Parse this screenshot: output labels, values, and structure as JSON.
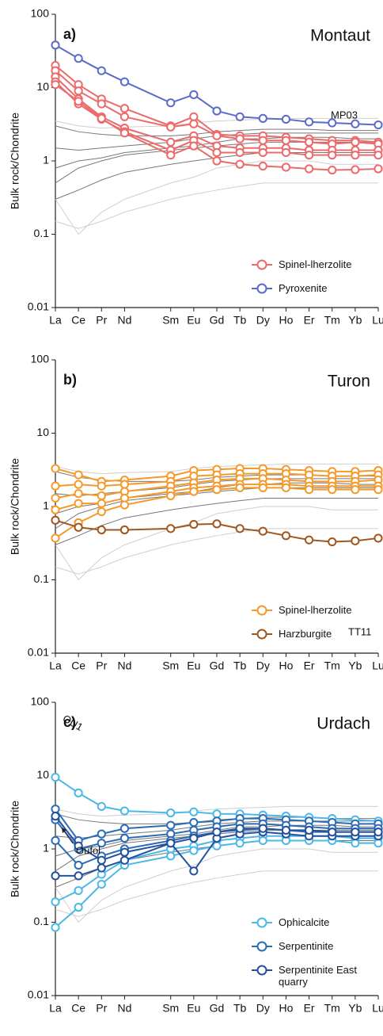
{
  "chart_data": [
    {
      "type": "line",
      "panel": "a)",
      "title": "Montaut",
      "ylabel": "Bulk rock/Chondrite",
      "yscale": "log",
      "x": [
        57,
        58,
        59,
        60,
        62,
        63,
        64,
        65,
        66,
        67,
        68,
        69,
        70,
        71
      ],
      "xlim": [
        57,
        71
      ],
      "xticks": [
        {
          "value": 57,
          "label": "La"
        },
        {
          "value": 58,
          "label": "Ce"
        },
        {
          "value": 59,
          "label": "Pr"
        },
        {
          "value": 60,
          "label": "Nd"
        },
        {
          "value": 62,
          "label": "Sm"
        },
        {
          "value": 63,
          "label": "Eu"
        },
        {
          "value": 64,
          "label": "Gd"
        },
        {
          "value": 65,
          "label": "Tb"
        },
        {
          "value": 66,
          "label": "Dy"
        },
        {
          "value": 67,
          "label": "Ho"
        },
        {
          "value": 68,
          "label": "Er"
        },
        {
          "value": 69,
          "label": "Tm"
        },
        {
          "value": 70,
          "label": "Yb"
        },
        {
          "value": 71,
          "label": "Lu"
        }
      ],
      "ylim": [
        0.01,
        100
      ],
      "yticks": [
        0.01,
        0.1,
        1,
        10,
        100
      ],
      "legend": "lower right",
      "series": [
        {
          "color": "#cfcfcf",
          "samples": [
            [
              0.15,
              0.12,
              0.15,
              0.2,
              0.3,
              0.35,
              0.4,
              0.45,
              0.5,
              0.5,
              0.5,
              0.5,
              0.5,
              0.5
            ],
            [
              0.3,
              0.1,
              0.2,
              0.3,
              0.5,
              0.6,
              0.8,
              0.9,
              1.0,
              1.0,
              1.0,
              0.9,
              0.9,
              0.9
            ],
            [
              3.5,
              3.0,
              2.8,
              2.9,
              3.0,
              3.3,
              3.5,
              3.6,
              3.7,
              3.8,
              3.8,
              3.8,
              3.8,
              3.8
            ]
          ]
        },
        {
          "color": "#777777",
          "samples": [
            [
              3,
              2.5,
              2.3,
              2.2,
              2.2,
              2.3,
              2.5,
              2.6,
              2.7,
              2.7,
              2.7,
              2.6,
              2.6,
              2.6
            ],
            [
              0.5,
              0.8,
              1.0,
              1.2,
              1.4,
              1.5,
              1.6,
              1.7,
              1.8,
              1.8,
              1.8,
              1.8,
              1.8,
              1.8
            ],
            [
              0.3,
              0.4,
              0.55,
              0.7,
              0.9,
              1.0,
              1.1,
              1.2,
              1.3,
              1.3,
              1.3,
              1.3,
              1.3,
              1.3
            ],
            [
              1.5,
              1.4,
              1.5,
              1.6,
              1.8,
              2.0,
              2.2,
              2.3,
              2.4,
              2.4,
              2.4,
              2.4,
              2.4,
              2.4
            ],
            [
              0.8,
              1.0,
              1.1,
              1.3,
              1.5,
              1.6,
              1.8,
              2.0,
              2.0,
              2.1,
              2.1,
              2.1,
              2.0,
              2.0
            ]
          ]
        },
        {
          "name": "Spinel-lherzolite",
          "color": "#ec6a6a",
          "marker": true,
          "samples": [
            [
              20,
              11,
              7,
              5.2,
              3,
              4,
              2.3,
              2.2,
              2.2,
              2.1,
              2.0,
              1.9,
              1.9,
              1.8
            ],
            [
              17,
              9,
              6,
              4,
              2.9,
              3.2,
              2.2,
              2.0,
              1.9,
              1.9,
              1.8,
              1.7,
              1.8,
              1.7
            ],
            [
              14,
              7,
              4,
              2.8,
              1.8,
              2.2,
              1.6,
              1.5,
              1.5,
              1.5,
              1.4,
              1.4,
              1.4,
              1.4
            ],
            [
              12,
              6,
              3.7,
              2.5,
              1.4,
              1.9,
              1.3,
              1.3,
              1.3,
              1.3,
              1.2,
              1.2,
              1.2,
              1.2
            ],
            [
              11,
              6.5,
              3.8,
              2.4,
              1.2,
              1.6,
              1.0,
              0.9,
              0.85,
              0.82,
              0.78,
              0.75,
              0.76,
              0.78
            ]
          ]
        },
        {
          "name": "Pyroxenite",
          "color": "#5b6bc9",
          "marker": true,
          "samples": [
            [
              38,
              25,
              17,
              12,
              6.2,
              8,
              4.8,
              4.0,
              3.8,
              3.7,
              3.4,
              3.3,
              3.2,
              3.1
            ]
          ]
        }
      ],
      "annotations": [
        {
          "text": "MP03"
        }
      ]
    },
    {
      "type": "line",
      "panel": "b)",
      "title": "Turon",
      "ylabel": "Bulk rock/Chondrite",
      "yscale": "log",
      "x": [
        57,
        58,
        59,
        60,
        62,
        63,
        64,
        65,
        66,
        67,
        68,
        69,
        70,
        71
      ],
      "xlim": [
        57,
        71
      ],
      "xticks": [
        {
          "value": 57,
          "label": "La"
        },
        {
          "value": 58,
          "label": "Ce"
        },
        {
          "value": 59,
          "label": "Pr"
        },
        {
          "value": 60,
          "label": "Nd"
        },
        {
          "value": 62,
          "label": "Sm"
        },
        {
          "value": 63,
          "label": "Eu"
        },
        {
          "value": 64,
          "label": "Gd"
        },
        {
          "value": 65,
          "label": "Tb"
        },
        {
          "value": 66,
          "label": "Dy"
        },
        {
          "value": 67,
          "label": "Ho"
        },
        {
          "value": 68,
          "label": "Er"
        },
        {
          "value": 69,
          "label": "Tm"
        },
        {
          "value": 70,
          "label": "Yb"
        },
        {
          "value": 71,
          "label": "Lu"
        }
      ],
      "ylim": [
        0.01,
        100
      ],
      "yticks": [
        0.01,
        0.1,
        1,
        10,
        100
      ],
      "legend": "lower right",
      "series": [
        {
          "color": "#cfcfcf",
          "samples": [
            [
              0.15,
              0.12,
              0.15,
              0.2,
              0.3,
              0.35,
              0.4,
              0.45,
              0.5,
              0.5,
              0.5,
              0.5,
              0.5,
              0.5
            ],
            [
              0.3,
              0.1,
              0.2,
              0.3,
              0.5,
              0.6,
              0.8,
              0.9,
              1.0,
              1.0,
              1.0,
              0.9,
              0.9,
              0.9
            ],
            [
              3.5,
              3.0,
              2.8,
              2.9,
              3.0,
              3.3,
              3.5,
              3.6,
              3.7,
              3.8,
              3.8,
              3.8,
              3.8,
              3.8
            ]
          ]
        },
        {
          "color": "#777777",
          "samples": [
            [
              3,
              2.5,
              2.3,
              2.2,
              2.2,
              2.3,
              2.5,
              2.6,
              2.7,
              2.7,
              2.7,
              2.6,
              2.6,
              2.6
            ],
            [
              0.5,
              0.8,
              1.0,
              1.2,
              1.4,
              1.5,
              1.6,
              1.7,
              1.8,
              1.8,
              1.8,
              1.8,
              1.8,
              1.8
            ],
            [
              0.3,
              0.4,
              0.55,
              0.7,
              0.9,
              1.0,
              1.1,
              1.2,
              1.3,
              1.3,
              1.3,
              1.3,
              1.3,
              1.3
            ],
            [
              1.5,
              1.4,
              1.5,
              1.6,
              1.8,
              2.0,
              2.2,
              2.3,
              2.4,
              2.4,
              2.4,
              2.4,
              2.4,
              2.4
            ],
            [
              0.8,
              1.0,
              1.1,
              1.3,
              1.5,
              1.6,
              1.8,
              2.0,
              2.0,
              2.1,
              2.1,
              2.1,
              2.0,
              2.0
            ]
          ]
        },
        {
          "name": "Spinel-lherzolite",
          "color": "#f59a2a",
          "marker": true,
          "samples": [
            [
              3.3,
              2.7,
              2.2,
              2.3,
              2.6,
              3.1,
              3.2,
              3.3,
              3.3,
              3.2,
              3.1,
              3.0,
              3.0,
              3.1
            ],
            [
              1.9,
              2.0,
              1.9,
              2.0,
              2.2,
              2.6,
              2.7,
              2.8,
              2.8,
              2.8,
              2.7,
              2.6,
              2.6,
              2.7
            ],
            [
              1.3,
              1.5,
              1.4,
              1.6,
              1.9,
              2.1,
              2.3,
              2.4,
              2.4,
              2.3,
              2.2,
              2.2,
              2.2,
              2.3
            ],
            [
              0.9,
              1.1,
              1.1,
              1.3,
              1.6,
              1.8,
              1.9,
              2.0,
              2.0,
              2.0,
              1.9,
              1.9,
              1.9,
              1.9
            ],
            [
              0.37,
              0.6,
              0.85,
              1.05,
              1.4,
              1.6,
              1.7,
              1.8,
              1.8,
              1.8,
              1.7,
              1.7,
              1.7,
              1.7
            ]
          ]
        },
        {
          "name": "Harzburgite",
          "color": "#a0561f",
          "marker": true,
          "samples": [
            [
              0.65,
              0.52,
              0.48,
              0.48,
              0.5,
              0.57,
              0.58,
              0.5,
              0.46,
              0.4,
              0.35,
              0.33,
              0.34,
              0.37
            ]
          ]
        }
      ],
      "annotations": [
        {
          "text": "TT11"
        }
      ]
    },
    {
      "type": "line",
      "panel": "c)",
      "title": "Urdach",
      "ylabel": "Bulk rock/Chondrite",
      "yscale": "log",
      "x": [
        57,
        58,
        59,
        60,
        62,
        63,
        64,
        65,
        66,
        67,
        68,
        69,
        70,
        71
      ],
      "xlim": [
        57,
        71
      ],
      "xticks": [
        {
          "value": 57,
          "label": "La"
        },
        {
          "value": 58,
          "label": "Ce"
        },
        {
          "value": 59,
          "label": "Pr"
        },
        {
          "value": 60,
          "label": "Nd"
        },
        {
          "value": 62,
          "label": "Sm"
        },
        {
          "value": 63,
          "label": "Eu"
        },
        {
          "value": 64,
          "label": "Gd"
        },
        {
          "value": 65,
          "label": "Tb"
        },
        {
          "value": 66,
          "label": "Dy"
        },
        {
          "value": 67,
          "label": "Ho"
        },
        {
          "value": 68,
          "label": "Er"
        },
        {
          "value": 69,
          "label": "Tm"
        },
        {
          "value": 70,
          "label": "Yb"
        },
        {
          "value": 71,
          "label": "Lu"
        }
      ],
      "ylim": [
        0.01,
        100
      ],
      "yticks": [
        0.01,
        0.1,
        1,
        10,
        100
      ],
      "legend": "lower right",
      "series": [
        {
          "color": "#cfcfcf",
          "samples": [
            [
              0.15,
              0.12,
              0.15,
              0.2,
              0.3,
              0.35,
              0.4,
              0.45,
              0.5,
              0.5,
              0.5,
              0.5,
              0.5,
              0.5
            ],
            [
              0.3,
              0.1,
              0.2,
              0.3,
              0.5,
              0.6,
              0.8,
              0.9,
              1.0,
              1.0,
              1.0,
              0.9,
              0.9,
              0.9
            ],
            [
              3.5,
              3.0,
              2.8,
              2.9,
              3.0,
              3.3,
              3.5,
              3.6,
              3.7,
              3.8,
              3.8,
              3.8,
              3.8,
              3.8
            ]
          ]
        },
        {
          "color": "#777777",
          "samples": [
            [
              3,
              2.5,
              2.3,
              2.2,
              2.2,
              2.3,
              2.5,
              2.6,
              2.7,
              2.7,
              2.7,
              2.6,
              2.6,
              2.6
            ],
            [
              0.5,
              0.8,
              1.0,
              1.2,
              1.4,
              1.5,
              1.6,
              1.7,
              1.8,
              1.8,
              1.8,
              1.8,
              1.8,
              1.8
            ],
            [
              0.3,
              0.4,
              0.55,
              0.7,
              0.9,
              1.0,
              1.1,
              1.2,
              1.3,
              1.3,
              1.3,
              1.3,
              1.3,
              1.3
            ],
            [
              1.5,
              1.4,
              1.5,
              1.6,
              1.8,
              2.0,
              2.2,
              2.3,
              2.4,
              2.4,
              2.4,
              2.4,
              2.4,
              2.4
            ],
            [
              0.8,
              1.0,
              1.1,
              1.3,
              1.5,
              1.6,
              1.8,
              2.0,
              2.0,
              2.1,
              2.1,
              2.1,
              2.0,
              2.0
            ]
          ]
        },
        {
          "name": "Ophicalcite",
          "color": "#4cb8e8",
          "marker": true,
          "samples": [
            [
              9.5,
              5.8,
              3.8,
              3.3,
              3.1,
              3.2,
              3.0,
              3.0,
              2.9,
              2.8,
              2.7,
              2.6,
              2.5,
              2.4
            ],
            [
              0.19,
              0.27,
              0.45,
              0.7,
              1.0,
              1.1,
              1.3,
              1.4,
              1.5,
              1.5,
              1.5,
              1.5,
              1.4,
              1.4
            ],
            [
              0.085,
              0.16,
              0.33,
              0.6,
              0.8,
              0.95,
              1.1,
              1.2,
              1.3,
              1.3,
              1.3,
              1.3,
              1.2,
              1.2
            ]
          ]
        },
        {
          "name": "Serpentinite",
          "color": "#2b6cb5",
          "marker": true,
          "samples": [
            [
              3.5,
              1.3,
              1.6,
              1.9,
              2.1,
              2.3,
              2.4,
              2.6,
              2.6,
              2.5,
              2.4,
              2.3,
              2.2,
              2.2
            ],
            [
              2.5,
              1.0,
              1.2,
              1.4,
              1.6,
              1.8,
              2.0,
              2.2,
              2.2,
              2.1,
              2.0,
              1.9,
              1.9,
              1.9
            ],
            [
              1.3,
              0.6,
              0.8,
              1.0,
              1.3,
              1.5,
              1.7,
              1.8,
              1.9,
              1.8,
              1.7,
              1.7,
              1.7,
              1.7
            ]
          ]
        },
        {
          "name": "Serpentinite East quarry",
          "color": "#24519c",
          "marker": true,
          "samples": [
            [
              0.43,
              0.43,
              0.55,
              0.7,
              1.2,
              0.5,
              1.4,
              1.6,
              1.7,
              1.6,
              1.5,
              1.5,
              1.5,
              1.5
            ],
            [
              2.8,
              1.1,
              0.7,
              0.9,
              1.2,
              1.4,
              1.7,
              1.9,
              1.9,
              1.8,
              1.8,
              1.7,
              1.7,
              1.7
            ]
          ]
        }
      ],
      "annotations": [
        {
          "text": "OU1"
        },
        {
          "text": "Oufol"
        }
      ]
    }
  ]
}
